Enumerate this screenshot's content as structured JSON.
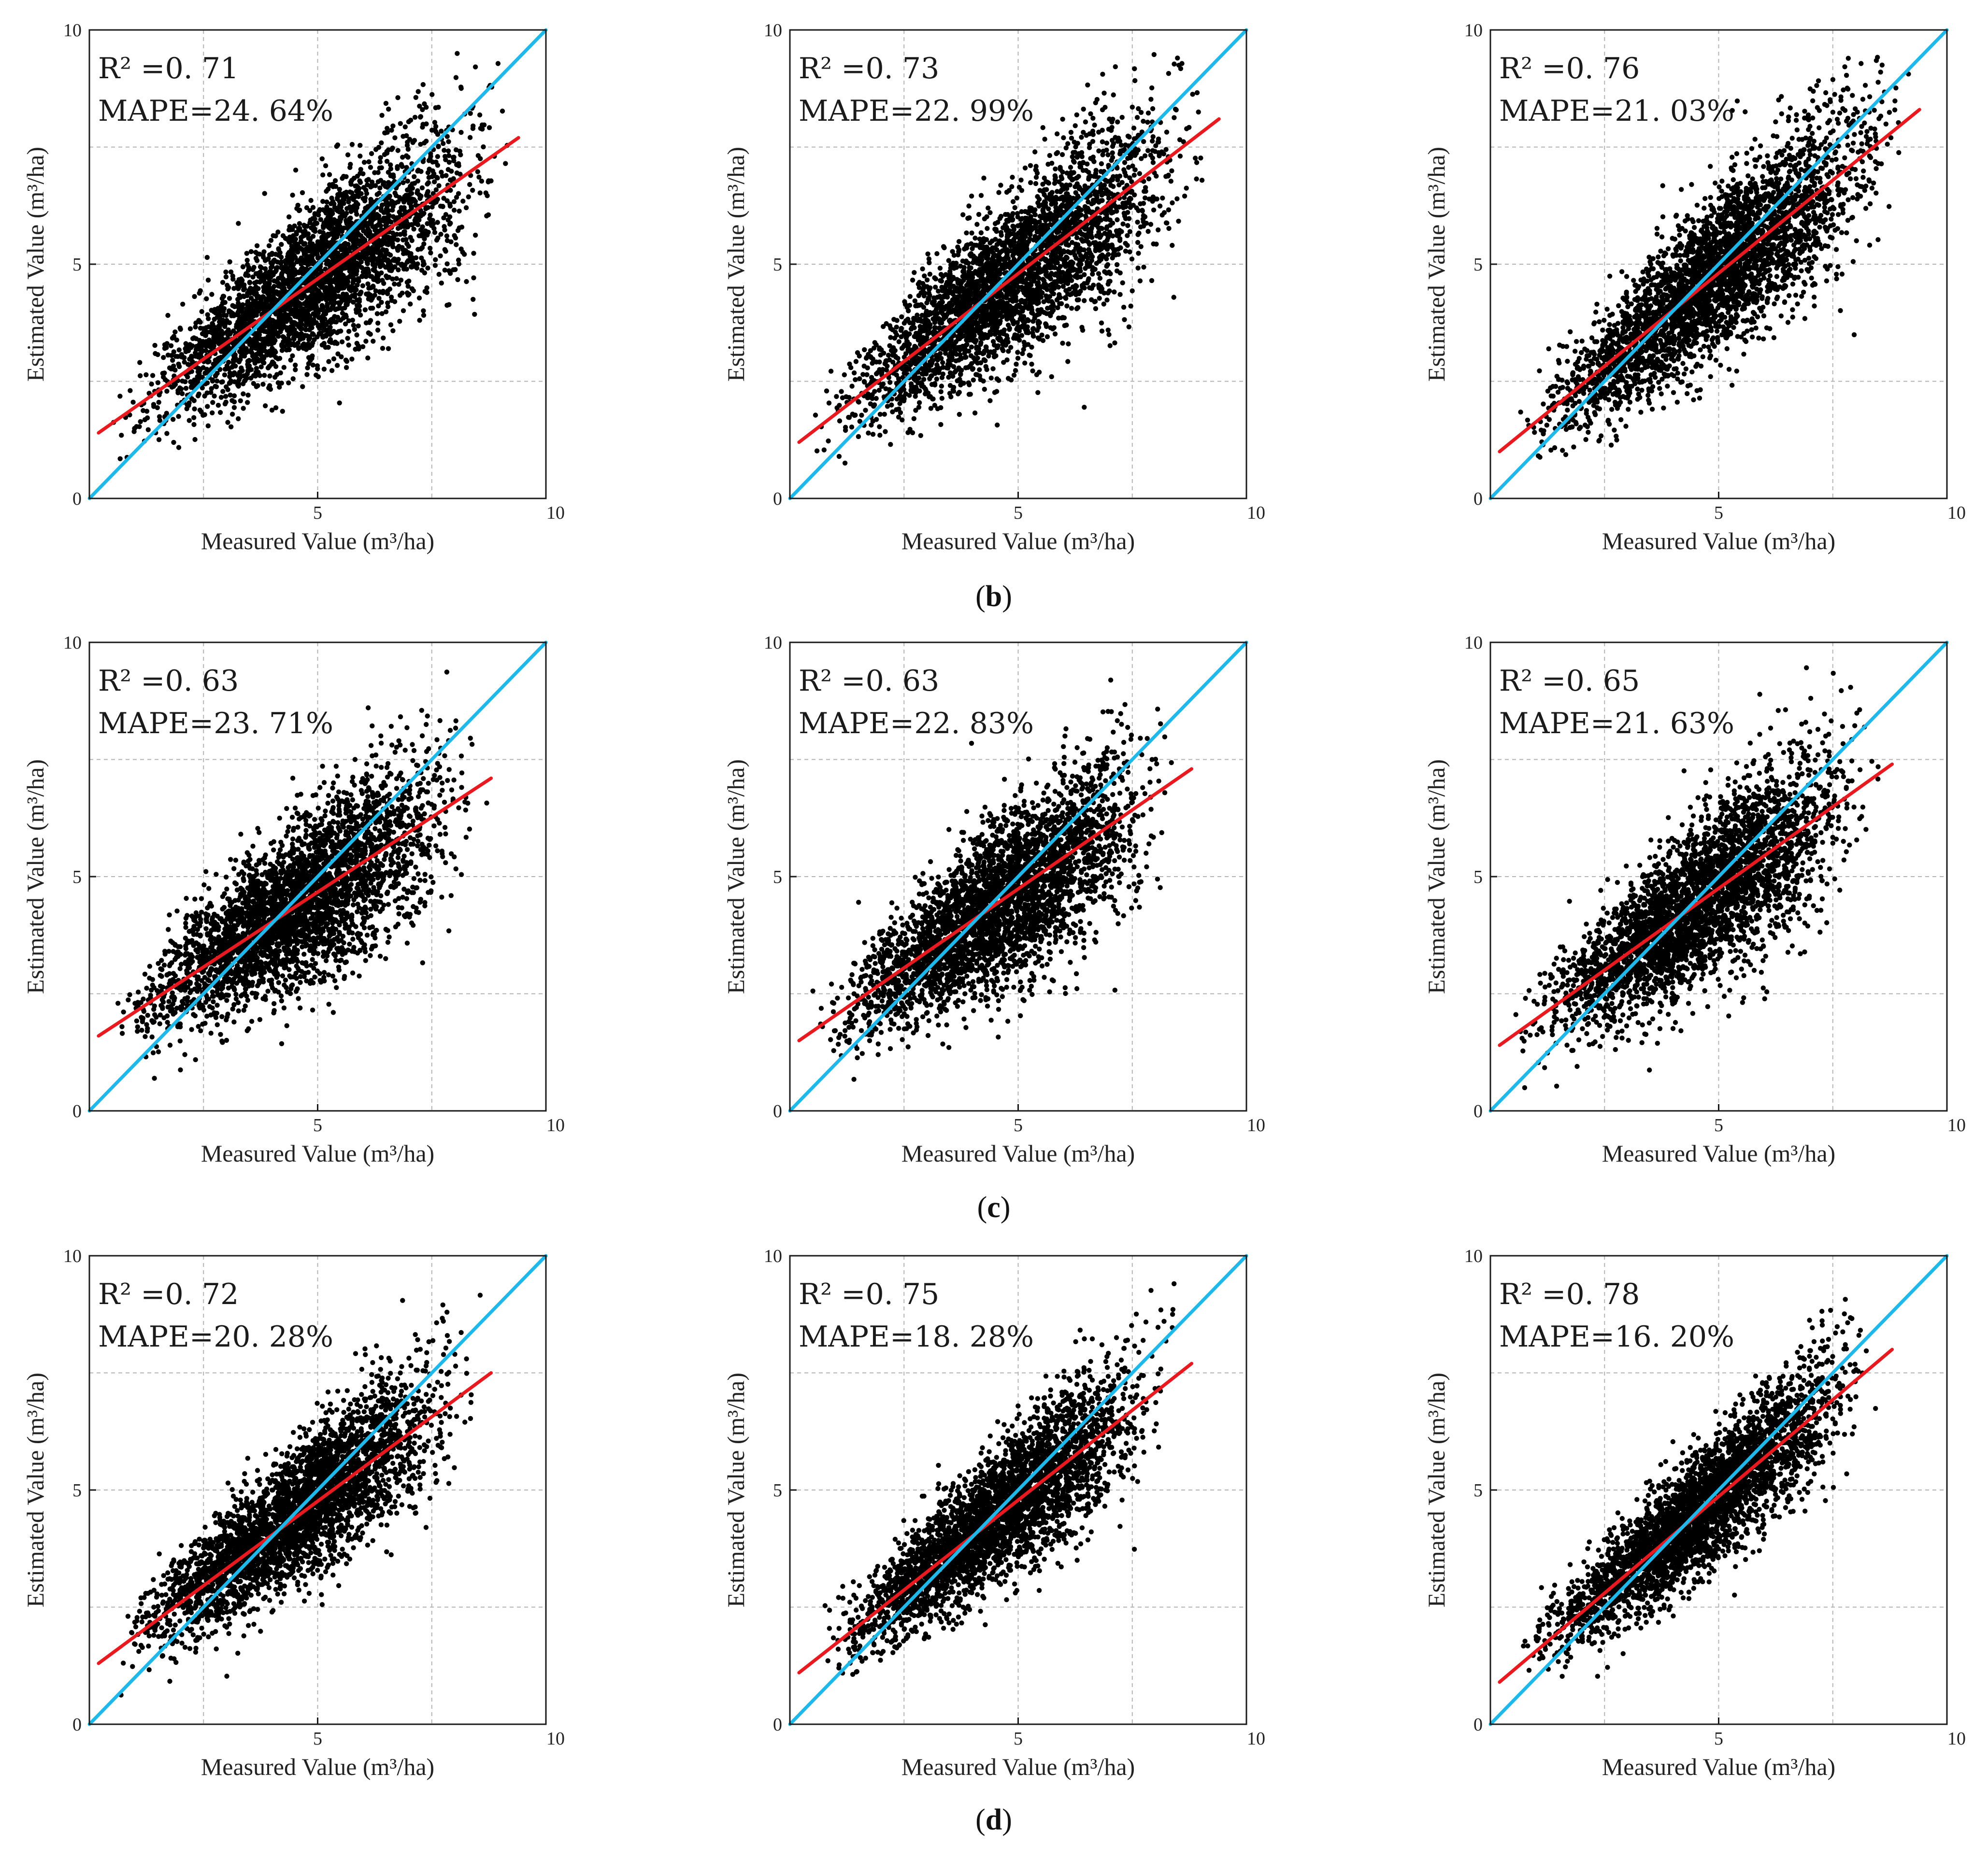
{
  "figure": {
    "row_labels": [
      {
        "open": "(",
        "letter": "b",
        "close": ")"
      },
      {
        "open": "(",
        "letter": "c",
        "close": ")"
      },
      {
        "open": "(",
        "letter": "d",
        "close": ")"
      }
    ]
  },
  "colors": {
    "points": "#000000",
    "fit_line": "#e8191f",
    "identity_line": "#1fb8ea",
    "grid": "#b3b3b3",
    "frame": "#1a1a1a"
  },
  "chart_data": [
    {
      "type": "scatter",
      "row": "b",
      "xlabel": "Measured Value (m³/ha)",
      "ylabel": "Estimated Value (m³/ha)",
      "xlim": [
        0,
        10
      ],
      "ylim": [
        0,
        10
      ],
      "xticks": [
        "5",
        "10"
      ],
      "yticks": [
        "0",
        "5",
        "10"
      ],
      "grid": true,
      "r2_label": "R² =0. 71",
      "mape_label": "MAPE=24. 64%",
      "r2": 0.71,
      "mape": 24.64,
      "fit_line": [
        [
          0.2,
          1.4
        ],
        [
          9.4,
          7.7
        ]
      ],
      "identity_line": [
        [
          0,
          0
        ],
        [
          10,
          10
        ]
      ],
      "scatter": {
        "n": 3400,
        "x_range": [
          0.3,
          9.5
        ],
        "slope": 0.68,
        "intercept": 1.3,
        "spread": 0.7,
        "seed": 11
      }
    },
    {
      "type": "scatter",
      "row": "b",
      "xlabel": "Measured Value (m³/ha)",
      "ylabel": "Estimated Value (m³/ha)",
      "xlim": [
        0,
        10
      ],
      "ylim": [
        0,
        10
      ],
      "xticks": [
        "5",
        "10"
      ],
      "yticks": [
        "0",
        "5",
        "10"
      ],
      "grid": true,
      "r2_label": "R² =0. 73",
      "mape_label": "MAPE=22. 99%",
      "r2": 0.73,
      "mape": 22.99,
      "fit_line": [
        [
          0.2,
          1.2
        ],
        [
          9.4,
          8.1
        ]
      ],
      "identity_line": [
        [
          0,
          0
        ],
        [
          10,
          10
        ]
      ],
      "scatter": {
        "n": 3400,
        "x_range": [
          0.3,
          9.5
        ],
        "slope": 0.74,
        "intercept": 1.1,
        "spread": 0.72,
        "seed": 23
      }
    },
    {
      "type": "scatter",
      "row": "b",
      "xlabel": "Measured Value (m³/ha)",
      "ylabel": "Estimated Value (m³/ha)",
      "xlim": [
        0,
        10
      ],
      "ylim": [
        0,
        10
      ],
      "xticks": [
        "5",
        "10"
      ],
      "yticks": [
        "0",
        "5",
        "10"
      ],
      "grid": true,
      "r2_label": "R² =0. 76",
      "mape_label": "MAPE=21. 03%",
      "r2": 0.76,
      "mape": 21.03,
      "fit_line": [
        [
          0.2,
          1.0
        ],
        [
          9.4,
          8.3
        ]
      ],
      "identity_line": [
        [
          0,
          0
        ],
        [
          10,
          10
        ]
      ],
      "scatter": {
        "n": 3400,
        "x_range": [
          0.3,
          9.5
        ],
        "slope": 0.79,
        "intercept": 0.85,
        "spread": 0.68,
        "seed": 37
      }
    },
    {
      "type": "scatter",
      "row": "c",
      "xlabel": "Measured Value (m³/ha)",
      "ylabel": "Estimated Value (m³/ha)",
      "xlim": [
        0,
        10
      ],
      "ylim": [
        0,
        10
      ],
      "xticks": [
        "5",
        "10"
      ],
      "yticks": [
        "0",
        "5",
        "10"
      ],
      "grid": true,
      "r2_label": "R² =0. 63",
      "mape_label": "MAPE=23. 71%",
      "r2": 0.63,
      "mape": 23.71,
      "fit_line": [
        [
          0.2,
          1.6
        ],
        [
          8.8,
          7.1
        ]
      ],
      "identity_line": [
        [
          0,
          0
        ],
        [
          10,
          10
        ]
      ],
      "scatter": {
        "n": 3400,
        "x_range": [
          0.3,
          8.8
        ],
        "slope": 0.64,
        "intercept": 1.5,
        "spread": 0.75,
        "seed": 41
      }
    },
    {
      "type": "scatter",
      "row": "c",
      "xlabel": "Measured Value (m³/ha)",
      "ylabel": "Estimated Value (m³/ha)",
      "xlim": [
        0,
        10
      ],
      "ylim": [
        0,
        10
      ],
      "xticks": [
        "5",
        "10"
      ],
      "yticks": [
        "0",
        "5",
        "10"
      ],
      "grid": true,
      "r2_label": "R² =0. 63",
      "mape_label": "MAPE=22. 83%",
      "r2": 0.63,
      "mape": 22.83,
      "fit_line": [
        [
          0.2,
          1.5
        ],
        [
          8.8,
          7.3
        ]
      ],
      "identity_line": [
        [
          0,
          0
        ],
        [
          10,
          10
        ]
      ],
      "scatter": {
        "n": 3400,
        "x_range": [
          0.3,
          8.8
        ],
        "slope": 0.67,
        "intercept": 1.35,
        "spread": 0.75,
        "seed": 53
      }
    },
    {
      "type": "scatter",
      "row": "c",
      "xlabel": "Measured Value (m³/ha)",
      "ylabel": "Estimated Value (m³/ha)",
      "xlim": [
        0,
        10
      ],
      "ylim": [
        0,
        10
      ],
      "xticks": [
        "5",
        "10"
      ],
      "yticks": [
        "0",
        "5",
        "10"
      ],
      "grid": true,
      "r2_label": "R² =0. 65",
      "mape_label": "MAPE=21. 63%",
      "r2": 0.65,
      "mape": 21.63,
      "fit_line": [
        [
          0.2,
          1.4
        ],
        [
          8.8,
          7.4
        ]
      ],
      "identity_line": [
        [
          0,
          0
        ],
        [
          10,
          10
        ]
      ],
      "scatter": {
        "n": 3400,
        "x_range": [
          0.3,
          8.8
        ],
        "slope": 0.7,
        "intercept": 1.25,
        "spread": 0.73,
        "seed": 67
      }
    },
    {
      "type": "scatter",
      "row": "d",
      "xlabel": "Measured Value (m³/ha)",
      "ylabel": "Estimated Value (m³/ha)",
      "xlim": [
        0,
        10
      ],
      "ylim": [
        0,
        10
      ],
      "xticks": [
        "5",
        "10"
      ],
      "yticks": [
        "0",
        "5",
        "10"
      ],
      "grid": true,
      "r2_label": "R² =0. 72",
      "mape_label": "MAPE=20. 28%",
      "r2": 0.72,
      "mape": 20.28,
      "fit_line": [
        [
          0.2,
          1.3
        ],
        [
          8.8,
          7.5
        ]
      ],
      "identity_line": [
        [
          0,
          0
        ],
        [
          10,
          10
        ]
      ],
      "scatter": {
        "n": 3400,
        "x_range": [
          0.3,
          8.8
        ],
        "slope": 0.72,
        "intercept": 1.2,
        "spread": 0.62,
        "seed": 71
      }
    },
    {
      "type": "scatter",
      "row": "d",
      "xlabel": "Measured Value (m³/ha)",
      "ylabel": "Estimated Value (m³/ha)",
      "xlim": [
        0,
        10
      ],
      "ylim": [
        0,
        10
      ],
      "xticks": [
        "5",
        "10"
      ],
      "yticks": [
        "0",
        "5",
        "10"
      ],
      "grid": true,
      "r2_label": "R² =0. 75",
      "mape_label": "MAPE=18. 28%",
      "r2": 0.75,
      "mape": 18.28,
      "fit_line": [
        [
          0.2,
          1.1
        ],
        [
          8.8,
          7.7
        ]
      ],
      "identity_line": [
        [
          0,
          0
        ],
        [
          10,
          10
        ]
      ],
      "scatter": {
        "n": 3400,
        "x_range": [
          0.3,
          8.8
        ],
        "slope": 0.77,
        "intercept": 0.95,
        "spread": 0.6,
        "seed": 83
      }
    },
    {
      "type": "scatter",
      "row": "d",
      "xlabel": "Measured Value (m³/ha)",
      "ylabel": "Estimated Value (m³/ha)",
      "xlim": [
        0,
        10
      ],
      "ylim": [
        0,
        10
      ],
      "xticks": [
        "5",
        "10"
      ],
      "yticks": [
        "0",
        "5",
        "10"
      ],
      "grid": true,
      "r2_label": "R² =0. 78",
      "mape_label": "MAPE=16. 20%",
      "r2": 0.78,
      "mape": 16.2,
      "fit_line": [
        [
          0.2,
          0.9
        ],
        [
          8.8,
          8.0
        ]
      ],
      "identity_line": [
        [
          0,
          0
        ],
        [
          10,
          10
        ]
      ],
      "scatter": {
        "n": 3400,
        "x_range": [
          0.3,
          8.8
        ],
        "slope": 0.83,
        "intercept": 0.75,
        "spread": 0.55,
        "seed": 97
      }
    }
  ]
}
